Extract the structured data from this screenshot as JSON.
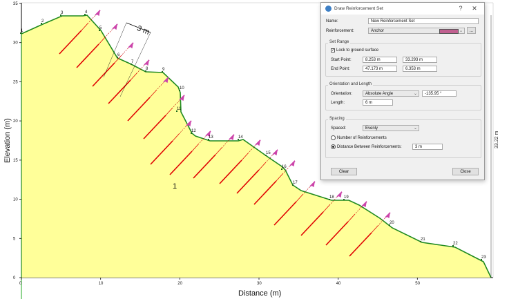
{
  "plot": {
    "x_axis_label": "Distance (m)",
    "y_axis_label": "Elevation (m)",
    "x_ticks": [
      "0",
      "10",
      "20",
      "30",
      "40",
      "50"
    ],
    "y_ticks": [
      "35",
      "30",
      "25",
      "20",
      "15",
      "10",
      "5",
      "0"
    ],
    "vertex_labels": [
      "1",
      "2",
      "3",
      "4",
      "5",
      "6",
      "7",
      "8",
      "9",
      "10",
      "11",
      "12",
      "13",
      "14",
      "15",
      "16",
      "17",
      "18",
      "19",
      "20",
      "21",
      "22",
      "23"
    ],
    "material_label": "1",
    "dimension_top": "3 m",
    "dimension_right": "33.22 m",
    "colors": {
      "soil": "#ffff99",
      "boundary": "#1f8a1f",
      "anchor": "#e00000",
      "anchor_head": "#cc44aa"
    }
  },
  "dialog": {
    "title": "Draw Reinforcement Set",
    "help_btn": "?",
    "close_btn": "✕",
    "name_label": "Name:",
    "name_value": "New Reinforcement Set",
    "reinforcement_label": "Reinforcement:",
    "reinforcement_value": "Anchor",
    "reinforcement_color": "#c06090",
    "more_btn": "...",
    "set_placement_title": "Set Range",
    "lock_label": "Lock to ground surface",
    "start_label": "Start Point:",
    "start_x": "8.253 m",
    "start_y": "33.293 m",
    "end_label": "End Point:",
    "end_x": "47.173 m",
    "end_y": "6.353 m",
    "orientation_title": "Orientation and Length",
    "orientation_label": "Orientation:",
    "orientation_value": "Absolute Angle",
    "angle_value": "-135.95 °",
    "length_label": "Length:",
    "length_value": "6 m",
    "spacing_title": "Spacing",
    "spaced_label": "Spaced:",
    "spaced_value": "Evenly",
    "number_label": "Number of Reinforcements",
    "distance_label": "Distance Between Reinforcements:",
    "distance_value": "3 m",
    "clear_btn": "Clear",
    "close_label": "Close"
  }
}
